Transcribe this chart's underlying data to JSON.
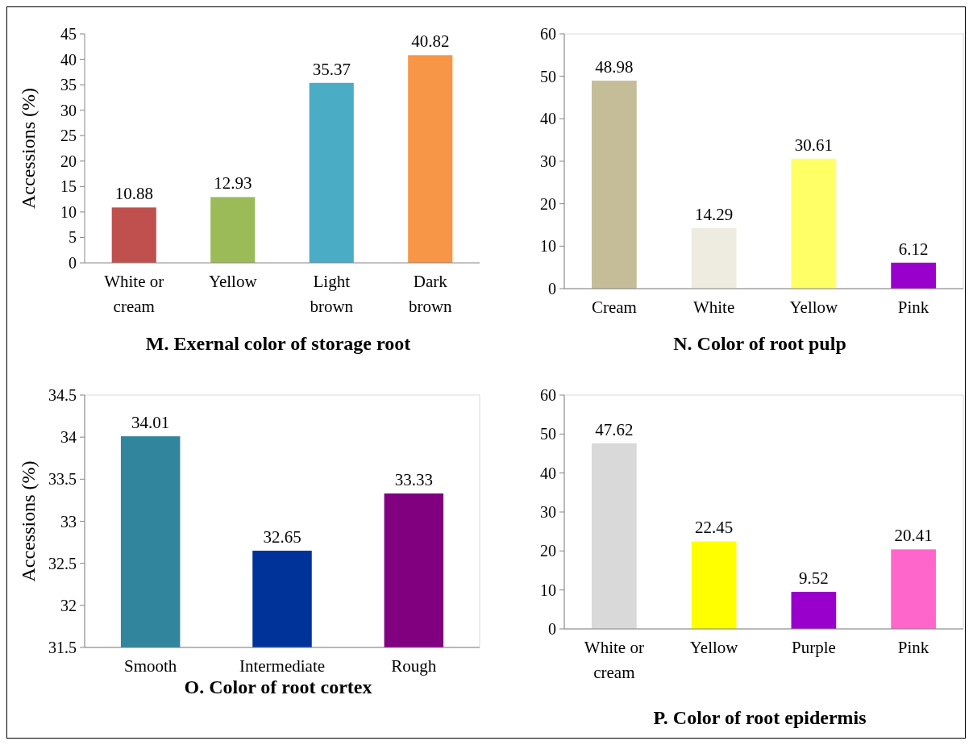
{
  "chart_data": [
    {
      "type": "bar",
      "title": "M. Exernal color of storage root",
      "ylabel": "Accessions (%)",
      "categories": [
        "White or cream",
        "Yellow",
        "Light brown",
        "Dark brown"
      ],
      "values": [
        10.88,
        12.93,
        35.37,
        40.82
      ],
      "colors": [
        "#c0504d",
        "#9bbb59",
        "#4bacc6",
        "#f79646"
      ],
      "ylim": [
        0,
        45
      ],
      "yticks": [
        0,
        5,
        10,
        15,
        20,
        25,
        30,
        35,
        40,
        45
      ],
      "data_labels": true,
      "grid": false
    },
    {
      "type": "bar",
      "title": "N. Color of root pulp",
      "categories": [
        "Cream",
        "White",
        "Yellow",
        "Pink"
      ],
      "values": [
        48.98,
        14.29,
        30.61,
        6.12
      ],
      "colors": [
        "#c4bd97",
        "#eeece1",
        "#ffff66",
        "#9900cc"
      ],
      "ylim": [
        0,
        60
      ],
      "yticks": [
        0,
        10,
        20,
        30,
        40,
        50,
        60
      ],
      "data_labels": true,
      "grid": false
    },
    {
      "type": "bar",
      "title": "O. Color of root cortex",
      "ylabel": "Accessions (%)",
      "categories": [
        "Smooth",
        "Intermediate",
        "Rough"
      ],
      "values": [
        34.01,
        32.65,
        33.33
      ],
      "colors": [
        "#31859c",
        "#003399",
        "#800080"
      ],
      "ylim": [
        31.5,
        34.5
      ],
      "yticks": [
        31.5,
        32,
        32.5,
        33,
        33.5,
        34,
        34.5
      ],
      "data_labels": true,
      "grid": false
    },
    {
      "type": "bar",
      "title": "P. Color of root epidermis",
      "categories": [
        "White or cream",
        "Yellow",
        "Purple",
        "Pink"
      ],
      "values": [
        47.62,
        22.45,
        9.52,
        20.41
      ],
      "colors": [
        "#d9d9d9",
        "#ffff00",
        "#9900cc",
        "#ff66cc"
      ],
      "ylim": [
        0,
        60
      ],
      "yticks": [
        0,
        10,
        20,
        30,
        40,
        50,
        60
      ],
      "data_labels": true,
      "grid": false
    }
  ]
}
